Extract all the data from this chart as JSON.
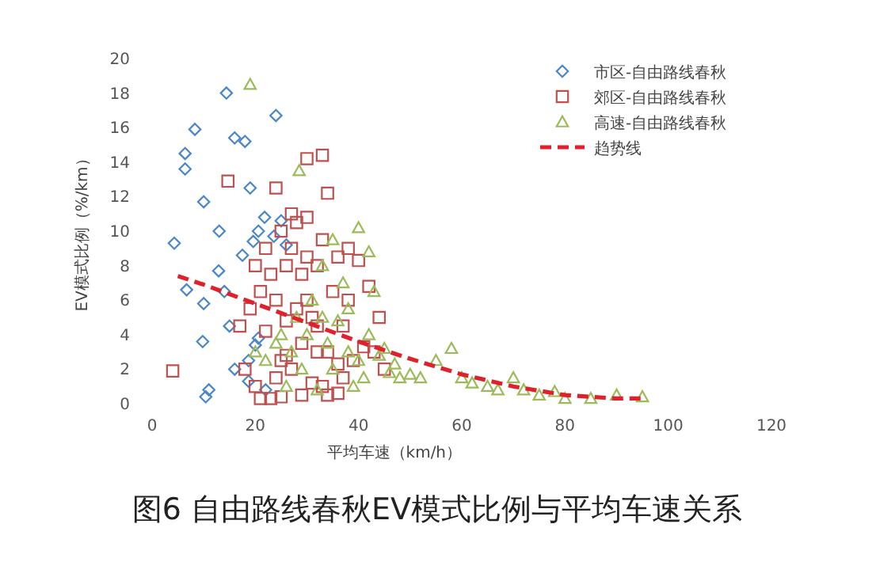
{
  "chart_data": {
    "type": "scatter",
    "title": "图6 自由路线春秋EV模式比例与平均车速关系",
    "xlabel": "平均车速（km/h）",
    "ylabel": "EV模式比例（%/km）",
    "xlim": [
      0,
      120
    ],
    "ylim": [
      0,
      20
    ],
    "xticks": [
      0,
      20,
      40,
      60,
      80,
      100,
      120
    ],
    "yticks": [
      0,
      2,
      4,
      6,
      8,
      10,
      12,
      14,
      16,
      18,
      20
    ],
    "legend": "top right",
    "series": [
      {
        "name": "市区-自由路线春秋",
        "color": "#4a86c8",
        "marker": "diamond",
        "x": [
          4.3,
          6.7,
          8.3,
          6.4,
          6.4,
          10,
          10,
          9.8,
          10.4,
          11,
          13,
          12.9,
          14.4,
          16,
          18,
          19,
          24,
          21.8,
          20.6,
          23.6,
          19.6,
          25,
          17.5,
          20.6,
          18.7,
          18.7,
          20,
          15,
          16,
          26,
          14,
          22
        ],
        "values": [
          9.3,
          6.6,
          15.9,
          14.5,
          13.6,
          11.7,
          5.8,
          3.6,
          0.4,
          0.8,
          10,
          7.7,
          18,
          15.4,
          15.2,
          12.5,
          16.7,
          10.8,
          10,
          9.7,
          9.4,
          10.6,
          8.6,
          3.8,
          2.5,
          1.3,
          3.4,
          4.5,
          2,
          9.2,
          6.5,
          0.8
        ]
      },
      {
        "name": "郊区-自由路线春秋",
        "color": "#c0504d",
        "marker": "square",
        "x": [
          4,
          14.7,
          24,
          22,
          17,
          19,
          18,
          20,
          21,
          23,
          25,
          26,
          27,
          28,
          29,
          30,
          31,
          32,
          33,
          34,
          33,
          34,
          30,
          36,
          38,
          40,
          42,
          44,
          41,
          39,
          37,
          36,
          29,
          27,
          26,
          24,
          23,
          22,
          28,
          30,
          32,
          33,
          35,
          37,
          38,
          43,
          45,
          31,
          29,
          25,
          27,
          30,
          26,
          24,
          21,
          20,
          32,
          34,
          36,
          25
        ],
        "values": [
          1.9,
          12.9,
          12.5,
          4.2,
          4.5,
          5.5,
          2,
          1,
          0.3,
          0.3,
          2.5,
          8,
          9,
          10.5,
          7.5,
          6,
          5,
          3,
          1,
          0.5,
          14.4,
          12.2,
          14.2,
          8.5,
          9,
          8.3,
          6.8,
          5,
          3.3,
          2.5,
          1.5,
          0.6,
          3.5,
          2,
          4.8,
          6,
          7.5,
          9,
          5.5,
          8.5,
          8,
          9.5,
          6.5,
          4.5,
          6,
          3,
          2,
          1.2,
          0.5,
          0.4,
          11,
          10.8,
          2.8,
          1.5,
          6.5,
          8,
          4.5,
          3,
          2.3,
          10
        ]
      },
      {
        "name": "高速-自由路线春秋",
        "color": "#9bbb59",
        "marker": "triangle",
        "x": [
          19,
          28.5,
          20,
          22,
          25,
          27,
          29,
          30,
          31,
          33,
          34,
          35,
          36,
          37,
          38,
          40,
          41,
          42,
          43,
          44,
          45,
          46,
          47,
          48,
          50,
          52,
          55,
          58,
          60,
          62,
          65,
          67,
          70,
          72,
          75,
          78,
          80,
          85,
          90,
          95,
          28,
          26,
          32,
          39,
          24,
          33,
          35,
          40,
          38,
          42
        ],
        "values": [
          18.5,
          13.5,
          3,
          2.5,
          4,
          3,
          2,
          4,
          6,
          5,
          3.5,
          2,
          4.8,
          7,
          3,
          2.5,
          1.5,
          4,
          6.5,
          2.8,
          3.2,
          1.8,
          2.3,
          1.5,
          1.7,
          1.5,
          2.5,
          3.2,
          1.5,
          1.2,
          1,
          0.8,
          1.5,
          0.8,
          0.5,
          0.7,
          0.3,
          0.3,
          0.5,
          0.4,
          5,
          1,
          0.8,
          1,
          3.5,
          8,
          9.5,
          10.2,
          5.5,
          8.8
        ]
      },
      {
        "name": "趋势线",
        "type": "line",
        "color": "#e0202a",
        "marker": "none",
        "line_style": "dashed",
        "x": [
          5,
          10,
          20,
          30,
          40,
          50,
          60,
          70,
          80,
          90,
          95
        ],
        "values": [
          7.4,
          6.9,
          5.8,
          4.7,
          3.6,
          2.6,
          1.7,
          1.0,
          0.5,
          0.3,
          0.3
        ]
      }
    ]
  }
}
